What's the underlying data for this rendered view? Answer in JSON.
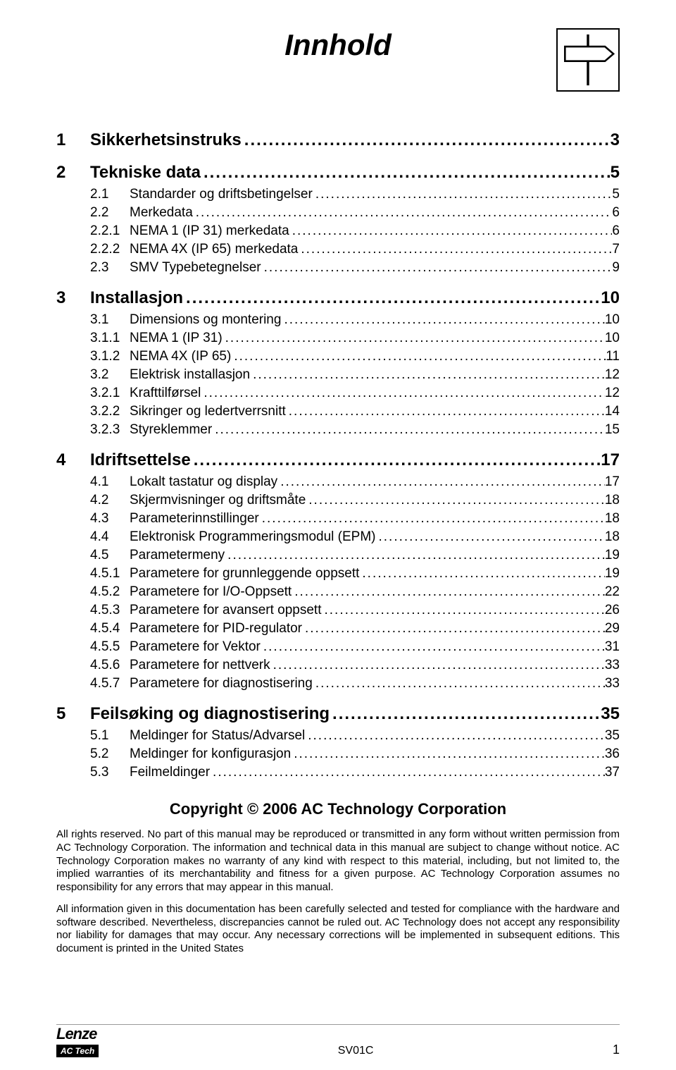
{
  "title": "Innhold",
  "toc": [
    {
      "level": 1,
      "num": "1",
      "text": "Sikkerhetsinstruks",
      "page": "3"
    },
    {
      "level": 1,
      "num": "2",
      "text": "Tekniske data",
      "page": "5"
    },
    {
      "level": 2,
      "num": "2.1",
      "text": "Standarder og driftsbetingelser",
      "page": "5"
    },
    {
      "level": 2,
      "num": "2.2",
      "text": "Merkedata",
      "page": "6"
    },
    {
      "level": 3,
      "num": "2.2.1",
      "text": "NEMA 1 (IP 31) merkedata",
      "page": "6"
    },
    {
      "level": 3,
      "num": "2.2.2",
      "text": "NEMA 4X (IP 65) merkedata",
      "page": "7"
    },
    {
      "level": 2,
      "num": "2.3",
      "text": "SMV Typebetegnelser",
      "page": "9"
    },
    {
      "level": 1,
      "num": "3",
      "text": "Installasjon",
      "page": "10"
    },
    {
      "level": 2,
      "num": "3.1",
      "text": "Dimensions og montering",
      "page": "10"
    },
    {
      "level": 3,
      "num": "3.1.1",
      "text": "NEMA 1 (IP 31)",
      "page": "10"
    },
    {
      "level": 3,
      "num": "3.1.2",
      "text": "NEMA 4X (IP 65)",
      "page": "11"
    },
    {
      "level": 2,
      "num": "3.2",
      "text": "Elektrisk installasjon",
      "page": "12"
    },
    {
      "level": 3,
      "num": "3.2.1",
      "text": "Krafttilførsel",
      "page": "12"
    },
    {
      "level": 3,
      "num": "3.2.2",
      "text": "Sikringer og ledertverrsnitt",
      "page": "14"
    },
    {
      "level": 3,
      "num": "3.2.3",
      "text": "Styreklemmer",
      "page": "15"
    },
    {
      "level": 1,
      "num": "4",
      "text": "Idriftsettelse",
      "page": "17"
    },
    {
      "level": 2,
      "num": "4.1",
      "text": "Lokalt tastatur og display",
      "page": "17"
    },
    {
      "level": 2,
      "num": "4.2",
      "text": "Skjermvisninger og driftsmåte",
      "page": "18"
    },
    {
      "level": 2,
      "num": "4.3",
      "text": "Parameterinnstillinger",
      "page": "18"
    },
    {
      "level": 2,
      "num": "4.4",
      "text": "Elektronisk Programmeringsmodul (EPM)",
      "page": "18"
    },
    {
      "level": 2,
      "num": "4.5",
      "text": "Parametermeny",
      "page": "19"
    },
    {
      "level": 3,
      "num": "4.5.1",
      "text": "Parametere for grunnleggende oppsett",
      "page": "19"
    },
    {
      "level": 3,
      "num": "4.5.2",
      "text": "Parametere for I/O-Oppsett",
      "page": "22"
    },
    {
      "level": 3,
      "num": "4.5.3",
      "text": "Parametere for avansert oppsett",
      "page": "26"
    },
    {
      "level": 3,
      "num": "4.5.4",
      "text": "Parametere for PID-regulator",
      "page": "29"
    },
    {
      "level": 3,
      "num": "4.5.5",
      "text": "Parametere for Vektor",
      "page": "31"
    },
    {
      "level": 3,
      "num": "4.5.6",
      "text": "Parametere for nettverk",
      "page": "33"
    },
    {
      "level": 3,
      "num": "4.5.7",
      "text": "Parametere for diagnostisering",
      "page": "33"
    },
    {
      "level": 1,
      "num": "5",
      "text": "Feilsøking og diagnostisering",
      "page": "35"
    },
    {
      "level": 2,
      "num": "5.1",
      "text": "Meldinger for Status/Advarsel",
      "page": "35"
    },
    {
      "level": 2,
      "num": "5.2",
      "text": "Meldinger for konfigurasjon",
      "page": "36"
    },
    {
      "level": 2,
      "num": "5.3",
      "text": "Feilmeldinger",
      "page": "37"
    }
  ],
  "copyright": "Copyright © 2006 AC Technology Corporation",
  "legal1": "All rights reserved. No part of this manual may be reproduced or transmitted in any form without written permission from AC Technology Corporation. The information and technical data in this manual are subject to change without notice. AC Technology Corporation makes no warranty of any kind with respect to this material, including, but not limited to, the implied warranties of its merchantability and fitness for a given purpose. AC Technology Corporation assumes no responsibility for any errors that may appear in this manual.",
  "legal2": "All information given in this documentation has been carefully selected and tested for compliance with the hardware and software described.  Nevertheless, discrepancies cannot be ruled out.  AC Technology does not accept any responsibility nor liability for damages that may occur.  Any necessary corrections will be implemented in subsequent editions.  This document is printed in the United States",
  "footer": {
    "doc_code": "SV01C",
    "page_number": "1",
    "logo_main": "Lenze",
    "logo_sub": "AC Tech"
  }
}
